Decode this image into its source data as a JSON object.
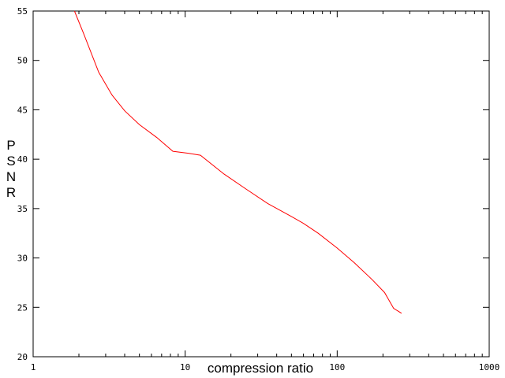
{
  "chart_data": {
    "type": "line",
    "xlabel": "compression ratio",
    "ylabel": "PSNR",
    "x_scale": "log",
    "xlim": [
      1,
      1000
    ],
    "ylim": [
      20,
      55
    ],
    "x_ticks": [
      1,
      10,
      100,
      1000
    ],
    "x_tick_labels": [
      "1",
      "10",
      "100",
      "1000"
    ],
    "y_ticks": [
      20,
      25,
      30,
      35,
      40,
      45,
      50,
      55
    ],
    "y_tick_labels": [
      "20",
      "25",
      "30",
      "35",
      "40",
      "45",
      "50",
      "55"
    ],
    "grid": false,
    "series": [
      {
        "color": "#ff0000",
        "x": [
          1.87,
          2.15,
          2.7,
          3.3,
          4.0,
          5.0,
          6.5,
          8.3,
          10.5,
          12.6,
          18.0,
          25.0,
          35.0,
          50.0,
          60.0,
          75.0,
          100.0,
          130.0,
          170.0,
          205.0,
          235.0,
          265.0
        ],
        "y": [
          55.0,
          52.7,
          48.8,
          46.5,
          44.9,
          43.5,
          42.2,
          40.8,
          40.6,
          40.4,
          38.5,
          37.0,
          35.5,
          34.2,
          33.5,
          32.5,
          31.0,
          29.5,
          27.8,
          26.5,
          24.9,
          24.4
        ]
      }
    ]
  }
}
